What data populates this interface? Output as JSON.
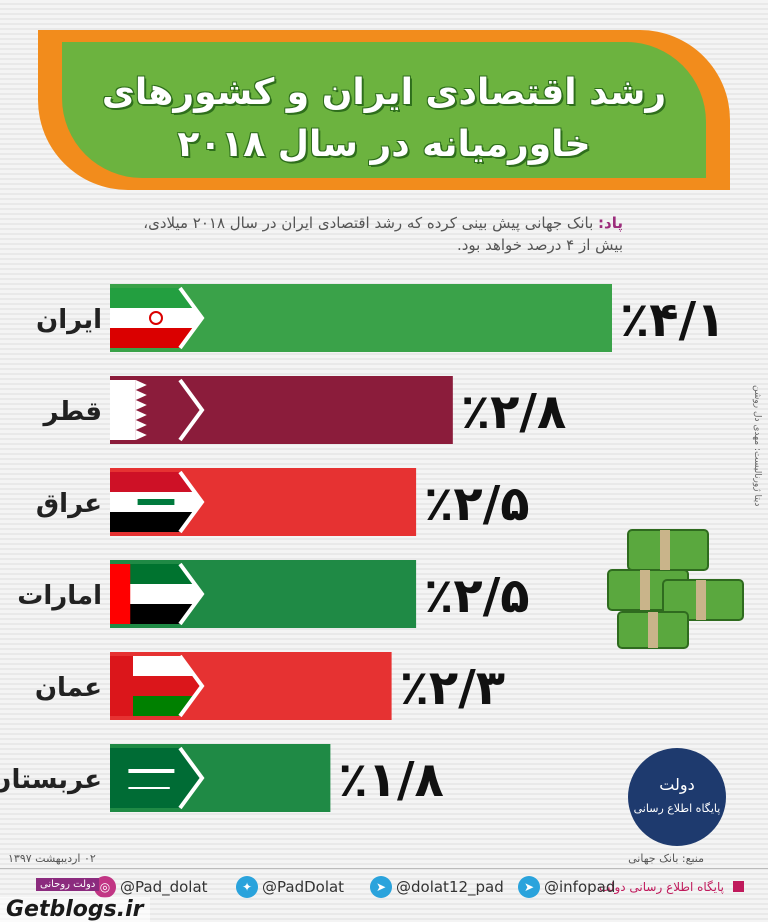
{
  "title": {
    "line1": "رشد اقتصادی ایران و کشورهای",
    "line2": "خاورمیانه در سال ۲۰۱۸"
  },
  "subtitle": {
    "lead": "پاد:",
    "line1": " بانک جهانی پیش بینی کرده که رشد اقتصادی ایران در سال ۲۰۱۸ میلادی،",
    "line2": "بیش از ۴ درصد خواهد بود."
  },
  "credit": "دیتا ژورنالیست: مهدی دل روشن",
  "logo": {
    "line1": "دولت",
    "line2": "پایگاه اطلاع رسانی"
  },
  "footer": {
    "source": "منبع: بانک جهانی",
    "date": "۰۲ اردیبهشت ۱۳۹۷",
    "site": "پایگاه اطلاع رسانی دولت",
    "infopad": "@infopad",
    "telegram": "@dolat12_pad",
    "twitter": "@PadDolat",
    "instagram": "@Pad_dolat",
    "badge": "دولت روحانی",
    "watermark": "Getblogs.ir"
  },
  "colors": {
    "orange": "#f28c1c",
    "green": "#6cb33f",
    "iran_bar": "#3aa249",
    "qatar_bar": "#8b1c3b",
    "iraq_bar": "#e63232",
    "uae_bar": "#1f8a45",
    "oman_bar": "#e63232",
    "saudi_bar": "#1f8a45"
  },
  "chart_data": {
    "type": "bar",
    "orientation": "horizontal",
    "categories": [
      "ایران",
      "قطر",
      "عراق",
      "امارات",
      "عمان",
      "عربستان"
    ],
    "values": [
      4.1,
      2.8,
      2.5,
      2.5,
      2.3,
      1.8
    ],
    "value_labels": [
      "٪۴/۱",
      "٪۲/۸",
      "٪۲/۵",
      "٪۲/۵",
      "٪۲/۳",
      "٪۱/۸"
    ],
    "flags": [
      "iran-flag",
      "qatar-flag",
      "iraq-flag",
      "uae-flag",
      "oman-flag",
      "saudi-flag"
    ],
    "bar_colors": [
      "#3aa249",
      "#8b1c3b",
      "#e63232",
      "#1f8a45",
      "#e63232",
      "#1f8a45"
    ]
  }
}
